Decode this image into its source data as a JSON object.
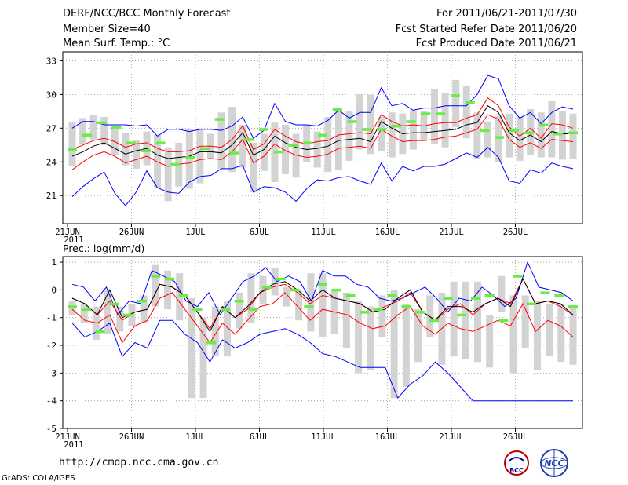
{
  "header": {
    "title": "DERF/NCC/BCC Monthly Forecast",
    "member": "Member Size=40",
    "variable": "Mean Surf. Temp.: °C",
    "period": "For 2011/06/21-2011/07/30",
    "started": "Fcst Started Refer Date 2011/06/20",
    "produced": "Fcst Produced Date 2011/06/21"
  },
  "footer": {
    "url": "http://cmdp.ncc.cma.gov.cn",
    "credit": "GrADS: COLA/IGES",
    "logo_bcc": "BCC",
    "logo_ncc": "NCC"
  },
  "colors": {
    "envelope": "#0000ff",
    "spread": "#ff0000",
    "mean": "#000000",
    "bar": "#d3d3d3",
    "obs": "#66ee44"
  },
  "chart_data": [
    {
      "type": "bar",
      "title": "Mean Surf. Temp.: °C",
      "x_ticks": [
        "21JUN",
        "26JUN",
        "1JUL",
        "6JUL",
        "11JUL",
        "16JUL",
        "21JUL",
        "26JUL"
      ],
      "x_year": "2011",
      "y_ticks": [
        "21",
        "24",
        "27",
        "30",
        "33"
      ],
      "ylim": [
        18.5,
        33.8
      ],
      "days": 40,
      "series": [
        {
          "name": "max",
          "color": "#0000ff",
          "values": [
            27.0,
            27.6,
            27.6,
            27.3,
            27.3,
            27.3,
            27.2,
            27.3,
            26.3,
            26.9,
            26.9,
            26.7,
            26.9,
            26.9,
            26.8,
            27.2,
            28.0,
            26.1,
            26.8,
            29.2,
            27.6,
            27.3,
            27.3,
            27.2,
            27.7,
            28.6,
            27.9,
            28.4,
            28.4,
            30.6,
            29.0,
            29.2,
            28.6,
            28.8,
            28.8,
            29.0,
            29.0,
            29.0,
            30.0,
            31.7,
            31.4,
            29.0,
            27.9,
            28.4,
            27.4,
            28.4,
            28.9,
            28.7
          ]
        },
        {
          "name": "upper",
          "color": "#ff0000",
          "values": [
            25.1,
            25.5,
            25.9,
            26.1,
            25.8,
            25.3,
            25.6,
            25.7,
            25.2,
            24.9,
            24.9,
            25.0,
            25.4,
            25.4,
            25.3,
            26.0,
            27.2,
            25.1,
            25.6,
            26.9,
            26.3,
            25.8,
            25.6,
            25.8,
            25.9,
            26.4,
            26.5,
            26.6,
            26.5,
            28.2,
            27.6,
            27.2,
            27.3,
            27.2,
            27.4,
            27.5,
            27.5,
            27.9,
            28.2,
            29.7,
            29.0,
            27.1,
            26.3,
            27.0,
            26.1,
            27.4,
            27.3,
            27.0
          ]
        },
        {
          "name": "mean",
          "color": "#000000",
          "values": [
            24.5,
            24.9,
            25.4,
            25.7,
            25.2,
            24.7,
            25.0,
            25.2,
            24.6,
            24.3,
            24.4,
            24.5,
            24.9,
            24.9,
            24.8,
            25.5,
            26.6,
            24.6,
            25.1,
            26.3,
            25.7,
            25.3,
            25.1,
            25.2,
            25.4,
            25.9,
            26.0,
            26.1,
            25.8,
            27.6,
            27.0,
            26.5,
            26.6,
            26.6,
            26.7,
            26.8,
            26.9,
            27.3,
            27.5,
            29.0,
            28.4,
            26.6,
            25.9,
            26.4,
            25.8,
            26.7,
            26.5,
            26.5
          ]
        },
        {
          "name": "lower",
          "color": "#ff0000",
          "values": [
            23.3,
            24.0,
            24.6,
            24.9,
            24.5,
            23.9,
            24.2,
            24.5,
            24.0,
            23.6,
            23.8,
            23.9,
            24.2,
            24.3,
            24.2,
            24.9,
            26.0,
            23.9,
            24.5,
            25.6,
            25.0,
            24.6,
            24.4,
            24.5,
            24.7,
            25.2,
            25.3,
            25.4,
            25.2,
            26.9,
            26.3,
            25.8,
            25.9,
            25.9,
            26.0,
            26.2,
            26.3,
            26.6,
            26.9,
            28.2,
            27.8,
            26.0,
            25.3,
            25.7,
            25.2,
            26.0,
            25.9,
            25.8
          ]
        },
        {
          "name": "min",
          "color": "#0000ff",
          "values": [
            20.9,
            21.8,
            22.5,
            23.1,
            21.2,
            20.1,
            21.3,
            23.2,
            21.7,
            21.3,
            21.2,
            22.2,
            22.7,
            22.8,
            23.4,
            23.4,
            23.7,
            21.3,
            21.8,
            21.7,
            21.3,
            20.5,
            21.6,
            22.4,
            22.3,
            22.6,
            22.7,
            22.3,
            22.0,
            23.9,
            22.3,
            23.6,
            23.2,
            23.6,
            23.6,
            23.8,
            24.3,
            24.8,
            24.4,
            25.3,
            24.4,
            22.3,
            22.1,
            23.3,
            23.0,
            23.9,
            23.6,
            23.4
          ]
        }
      ],
      "bars": [
        [
          23.6,
          27.5
        ],
        [
          25.6,
          27.9
        ],
        [
          26.0,
          28.2
        ],
        [
          25.5,
          28.0
        ],
        [
          24.6,
          27.2
        ],
        [
          23.7,
          26.6
        ],
        [
          23.4,
          25.9
        ],
        [
          23.7,
          26.7
        ],
        [
          21.7,
          26.4
        ],
        [
          20.5,
          25.3
        ],
        [
          21.8,
          25.7
        ],
        [
          21.6,
          26.9
        ],
        [
          22.1,
          26.9
        ],
        [
          24.3,
          26.5
        ],
        [
          23.4,
          28.4
        ],
        [
          23.1,
          28.9
        ],
        [
          23.5,
          27.3
        ],
        [
          21.3,
          25.7
        ],
        [
          23.2,
          26.5
        ],
        [
          22.2,
          27.5
        ],
        [
          22.9,
          27.3
        ],
        [
          22.6,
          26.5
        ],
        [
          24.0,
          27.3
        ],
        [
          23.5,
          26.7
        ],
        [
          23.1,
          28.0
        ],
        [
          23.3,
          28.5
        ],
        [
          24.1,
          28.5
        ],
        [
          25.1,
          30.0
        ],
        [
          24.7,
          30.0
        ],
        [
          25.0,
          28.0
        ],
        [
          24.4,
          28.4
        ],
        [
          24.7,
          28.3
        ],
        [
          25.1,
          28.6
        ],
        [
          25.9,
          28.5
        ],
        [
          25.6,
          30.5
        ],
        [
          25.3,
          30.1
        ],
        [
          27.1,
          31.3
        ],
        [
          26.1,
          30.8
        ],
        [
          24.3,
          28.4
        ],
        [
          24.4,
          27.6
        ],
        [
          24.0,
          28.1
        ],
        [
          24.4,
          28.3
        ],
        [
          24.1,
          28.0
        ],
        [
          24.6,
          28.7
        ],
        [
          24.4,
          28.4
        ],
        [
          24.4,
          29.4
        ],
        [
          24.2,
          28.5
        ],
        [
          24.3,
          28.3
        ]
      ],
      "obs": [
        [
          0,
          25.1
        ],
        [
          1,
          26.4
        ],
        [
          2,
          27.5
        ],
        [
          3,
          27.1
        ],
        [
          4,
          25.7
        ],
        [
          5,
          25.0
        ],
        [
          6,
          25.7
        ],
        [
          7,
          23.8
        ],
        [
          8,
          24.4
        ],
        [
          9,
          25.2
        ],
        [
          10,
          27.8
        ],
        [
          11,
          24.8
        ],
        [
          12,
          26.0
        ],
        [
          13,
          26.9
        ],
        [
          14,
          24.9
        ],
        [
          15,
          25.5
        ],
        [
          16,
          25.7
        ],
        [
          17,
          26.4
        ],
        [
          18,
          28.7
        ],
        [
          19,
          27.6
        ],
        [
          20,
          26.9
        ],
        [
          21,
          26.9
        ],
        [
          22,
          27.2
        ],
        [
          23,
          27.6
        ],
        [
          24,
          28.3
        ],
        [
          25,
          28.3
        ],
        [
          26,
          29.9
        ],
        [
          27,
          29.3
        ],
        [
          28,
          26.8
        ],
        [
          29,
          26.2
        ],
        [
          30,
          26.8
        ],
        [
          31,
          26.6
        ],
        [
          32,
          27.3
        ],
        [
          33,
          26.5
        ],
        [
          34,
          26.6
        ]
      ]
    },
    {
      "type": "bar",
      "title": "Prec.: log(mm/d)",
      "x_ticks": [
        "21JUN",
        "26JUN",
        "1JUL",
        "6JUL",
        "11JUL",
        "16JUL",
        "21JUL",
        "26JUL"
      ],
      "x_year": "2011",
      "y_ticks": [
        "-5",
        "-4",
        "-3",
        "-2",
        "-1",
        "0",
        "1"
      ],
      "ylim": [
        -5,
        1.2
      ],
      "days": 40,
      "series": [
        {
          "name": "max",
          "color": "#0000ff",
          "values": [
            0.2,
            0.1,
            -0.4,
            0.1,
            -0.9,
            -0.4,
            -0.5,
            0.7,
            0.5,
            0.3,
            -0.4,
            -0.6,
            -0.1,
            -0.9,
            -0.3,
            0.3,
            0.5,
            0.8,
            0.3,
            0.5,
            0.3,
            -0.4,
            0.7,
            0.5,
            0.5,
            0.2,
            0.1,
            -0.3,
            -0.4,
            -0.3,
            -0.1,
            0.1,
            -0.3,
            -0.8,
            -0.3,
            -0.4,
            0.1,
            -0.2,
            -0.6,
            -0.3,
            1.0,
            0.1,
            0.0,
            -0.1,
            -0.4
          ]
        },
        {
          "name": "upper",
          "color": "#ff0000",
          "values": [
            -0.3,
            -0.5,
            -0.9,
            -0.4,
            -1.1,
            -0.8,
            -0.7,
            0.2,
            0.1,
            -0.2,
            -0.8,
            -1.4,
            -0.6,
            -1.0,
            -0.7,
            -0.1,
            0.1,
            0.2,
            -0.1,
            -0.5,
            -0.2,
            -0.3,
            -0.4,
            -0.5,
            -0.8,
            -0.6,
            -0.4,
            -0.1,
            -0.8,
            -1.1,
            -0.7,
            -0.5,
            -0.9,
            -0.5,
            -0.3,
            -0.5,
            0.4,
            -0.5,
            -0.4,
            -0.6,
            -0.9
          ]
        },
        {
          "name": "mean",
          "color": "#000000",
          "values": [
            -0.3,
            -0.5,
            -0.9,
            -0.0,
            -1.0,
            -0.8,
            -0.7,
            0.2,
            0.1,
            -0.2,
            -0.8,
            -1.5,
            -0.6,
            -1.0,
            -0.6,
            -0.1,
            0.2,
            0.3,
            0.0,
            -0.4,
            0.0,
            -0.3,
            -0.4,
            -0.5,
            -0.8,
            -0.7,
            -0.3,
            -0.0,
            -0.8,
            -1.1,
            -0.6,
            -0.6,
            -0.8,
            -0.5,
            -0.3,
            -0.6,
            0.4,
            -0.5,
            -0.4,
            -0.5,
            -0.9
          ]
        },
        {
          "name": "lower",
          "color": "#ff0000",
          "values": [
            -0.7,
            -1.1,
            -1.2,
            -0.9,
            -1.9,
            -1.3,
            -1.1,
            -0.3,
            -0.1,
            -0.7,
            -1.3,
            -1.9,
            -1.2,
            -1.6,
            -1.1,
            -0.6,
            -0.5,
            -0.1,
            -0.6,
            -1.1,
            -0.7,
            -0.8,
            -0.9,
            -1.2,
            -1.4,
            -1.3,
            -0.9,
            -0.6,
            -1.3,
            -1.6,
            -1.2,
            -1.4,
            -1.5,
            -1.3,
            -1.1,
            -1.3,
            -0.5,
            -1.5,
            -1.1,
            -1.3,
            -1.7
          ]
        },
        {
          "name": "min",
          "color": "#0000ff",
          "values": [
            -1.2,
            -1.7,
            -1.5,
            -1.2,
            -2.4,
            -1.9,
            -2.1,
            -1.1,
            -1.1,
            -1.6,
            -1.9,
            -2.6,
            -1.8,
            -2.1,
            -1.9,
            -1.6,
            -1.5,
            -1.4,
            -1.6,
            -1.9,
            -2.3,
            -2.4,
            -2.6,
            -2.8,
            -2.8,
            -2.8,
            -3.9,
            -3.4,
            -3.1,
            -2.6,
            -3.0,
            -3.5,
            -4.0,
            -4.0,
            -4.0,
            -4.0,
            -4.0,
            -4.0,
            -4.0,
            -4.0,
            -4.0
          ]
        }
      ],
      "bars": [
        [
          -0.9,
          -0.4
        ],
        [
          -1.2,
          -0.5
        ],
        [
          -1.8,
          -0.6
        ],
        [
          -1.6,
          0.0
        ],
        [
          -1.5,
          -0.6
        ],
        [
          -1.3,
          -0.5
        ],
        [
          -1.2,
          -0.2
        ],
        [
          -0.6,
          0.9
        ],
        [
          -0.7,
          0.7
        ],
        [
          -1.1,
          0.6
        ],
        [
          -3.9,
          -0.3
        ],
        [
          -3.9,
          -1.0
        ],
        [
          -2.4,
          -0.6
        ],
        [
          -2.4,
          -0.4
        ],
        [
          -1.4,
          -0.1
        ],
        [
          -1.2,
          0.6
        ],
        [
          -0.5,
          0.5
        ],
        [
          -0.2,
          0.8
        ],
        [
          -0.6,
          0.1
        ],
        [
          -1.1,
          0.0
        ],
        [
          -1.5,
          0.6
        ],
        [
          -1.7,
          0.6
        ],
        [
          -1.6,
          0.0
        ],
        [
          -2.1,
          -0.1
        ],
        [
          -3.0,
          -0.4
        ],
        [
          -2.9,
          -0.6
        ],
        [
          -1.7,
          -0.2
        ],
        [
          -3.9,
          0.0
        ],
        [
          -3.5,
          -0.5
        ],
        [
          -2.6,
          -0.7
        ],
        [
          -1.7,
          -0.2
        ],
        [
          -2.7,
          -0.1
        ],
        [
          -2.4,
          0.3
        ],
        [
          -2.5,
          0.3
        ],
        [
          -2.6,
          0.3
        ],
        [
          -2.8,
          -0.9
        ],
        [
          -0.8,
          0.5
        ],
        [
          -3.0,
          -0.2
        ],
        [
          -2.1,
          -0.2
        ],
        [
          -2.9,
          -0.4
        ],
        [
          -2.4,
          -0.5
        ],
        [
          -2.6,
          -0.5
        ],
        [
          -2.7,
          -0.6
        ]
      ],
      "obs": [
        [
          0,
          -0.6
        ],
        [
          1,
          -0.7
        ],
        [
          2,
          -1.5
        ],
        [
          3,
          -0.5
        ],
        [
          4,
          -0.9
        ],
        [
          5,
          -0.4
        ],
        [
          6,
          0.5
        ],
        [
          7,
          0.4
        ],
        [
          8,
          -0.2
        ],
        [
          9,
          -0.7
        ],
        [
          10,
          -1.9
        ],
        [
          11,
          -0.7
        ],
        [
          12,
          -0.4
        ],
        [
          13,
          -0.7
        ],
        [
          14,
          0.1
        ],
        [
          15,
          0.4
        ],
        [
          16,
          0.0
        ],
        [
          17,
          -0.6
        ],
        [
          18,
          0.2
        ],
        [
          19,
          0.0
        ],
        [
          20,
          -0.2
        ],
        [
          21,
          -0.8
        ],
        [
          22,
          -0.7
        ],
        [
          23,
          -0.2
        ],
        [
          24,
          -0.6
        ],
        [
          25,
          -0.8
        ],
        [
          26,
          -1.1
        ],
        [
          27,
          -0.3
        ],
        [
          28,
          -0.9
        ],
        [
          29,
          -0.3
        ],
        [
          30,
          -0.2
        ],
        [
          31,
          -1.1
        ],
        [
          32,
          0.5
        ],
        [
          33,
          -0.5
        ],
        [
          34,
          -0.1
        ],
        [
          35,
          -0.2
        ],
        [
          36,
          -0.6
        ]
      ]
    }
  ]
}
